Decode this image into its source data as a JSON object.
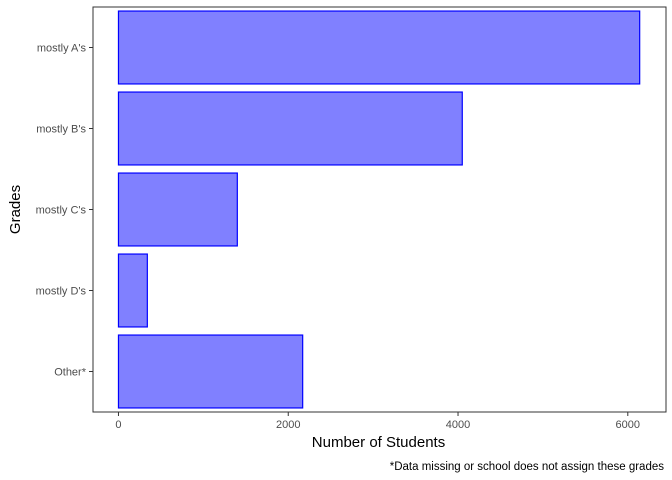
{
  "chart_data": {
    "type": "bar",
    "orientation": "horizontal",
    "categories": [
      "mostly A's",
      "mostly B's",
      "mostly C's",
      "mostly D's",
      "Other*"
    ],
    "values": [
      6140,
      4050,
      1400,
      340,
      2170
    ],
    "xlabel": "Number of Students",
    "ylabel": "Grades",
    "caption": "*Data missing or school does not assign these grades",
    "xlim": [
      -300,
      6450
    ],
    "x_ticks": [
      0,
      2000,
      4000,
      6000
    ],
    "x_tick_labels": [
      "0",
      "2000",
      "4000",
      "6000"
    ],
    "grid": false,
    "bar_fill": "#8080ff",
    "bar_stroke": "#0000ff",
    "panel_border": "#333333"
  }
}
